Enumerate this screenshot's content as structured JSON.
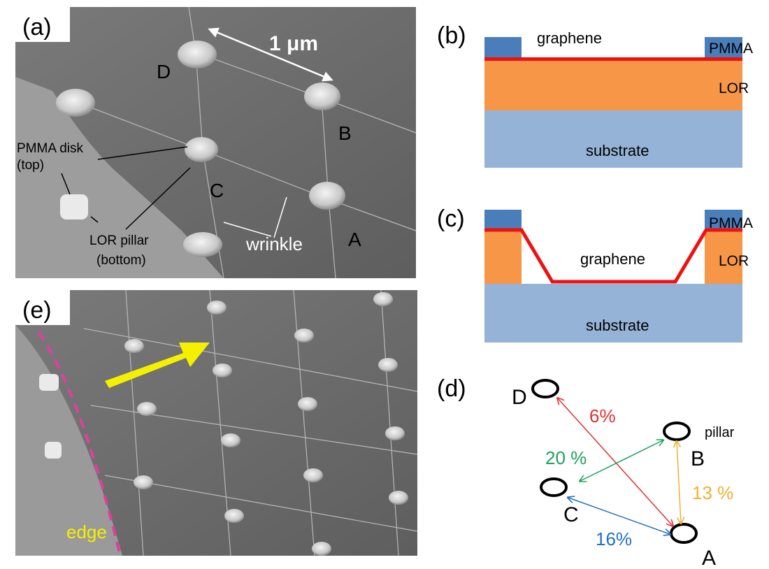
{
  "panel_a": {
    "label": "(a)",
    "scale": "1 μm",
    "D": "D",
    "B": "B",
    "C": "C",
    "A": "A",
    "pmma_disk": [
      "PMMA disk",
      "(top)"
    ],
    "lor_pillar": [
      "LOR pillar",
      "(bottom)"
    ],
    "wrinkle": "wrinkle"
  },
  "panel_b": {
    "label": "(b)",
    "graphene": "graphene",
    "pmma": "PMMA",
    "lor": "LOR",
    "substrate": "substrate"
  },
  "panel_c": {
    "label": "(c)",
    "pmma": "PMMA",
    "graphene": "graphene",
    "lor": "LOR",
    "substrate": "substrate"
  },
  "panel_d": {
    "label": "(d)",
    "D": "D",
    "B": "B",
    "C": "C",
    "A": "A",
    "pillar": "pillar",
    "DA": "6%",
    "CB": "20 %",
    "BA": "13 %",
    "CA": "16%"
  },
  "panel_e": {
    "label": "(e)",
    "edge": "edge"
  }
}
